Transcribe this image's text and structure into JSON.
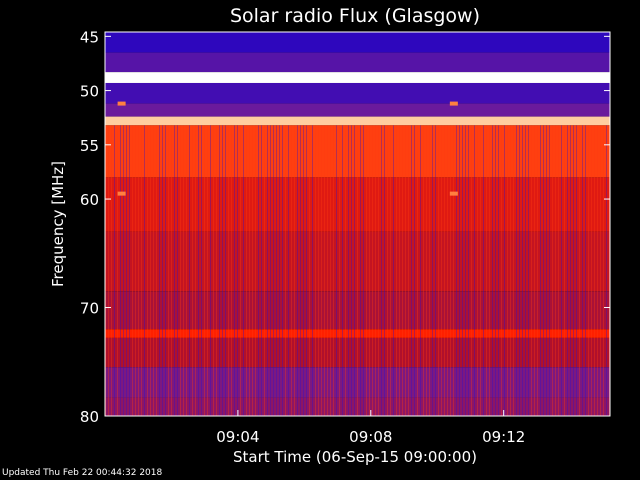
{
  "chart_data": {
    "type": "heatmap",
    "title": "Solar radio Flux (Glasgow)",
    "xlabel": "Start Time (06-Sep-15 09:00:00)",
    "ylabel_text": "Frequency ",
    "ylabel_unit": "[MHz]",
    "x_range_minutes": [
      0,
      15.2
    ],
    "x_ticks": [
      {
        "minute": 4,
        "label": "09:04"
      },
      {
        "minute": 8,
        "label": "09:08"
      },
      {
        "minute": 12,
        "label": "09:12"
      }
    ],
    "y_axis": "frequency (MHz), increasing downward",
    "y_range_mhz": [
      44.6,
      80
    ],
    "y_ticks": [
      {
        "mhz": 45,
        "label": "45"
      },
      {
        "mhz": 50,
        "label": "50"
      },
      {
        "mhz": 55,
        "label": "55"
      },
      {
        "mhz": 60,
        "label": "60"
      },
      {
        "mhz": 70,
        "label": "70"
      },
      {
        "mhz": 80,
        "label": "80"
      }
    ],
    "colormap": [
      "#1a00c8",
      "#6a1a9c",
      "#b0102c",
      "#ff2000",
      "#ff9a40",
      "#ffffff"
    ],
    "bands": [
      {
        "from_mhz": 44.6,
        "to_mhz": 46.5,
        "intensity": 0.05
      },
      {
        "from_mhz": 46.5,
        "to_mhz": 48.3,
        "intensity": 0.15
      },
      {
        "from_mhz": 48.3,
        "to_mhz": 49.3,
        "intensity": 1.0
      },
      {
        "from_mhz": 49.3,
        "to_mhz": 51.2,
        "intensity": 0.1
      },
      {
        "from_mhz": 51.2,
        "to_mhz": 52.4,
        "intensity": 0.2
      },
      {
        "from_mhz": 52.4,
        "to_mhz": 53.2,
        "intensity": 0.9
      },
      {
        "from_mhz": 53.2,
        "to_mhz": 58.0,
        "intensity": 0.65
      },
      {
        "from_mhz": 58.0,
        "to_mhz": 63.0,
        "intensity": 0.52
      },
      {
        "from_mhz": 63.0,
        "to_mhz": 68.5,
        "intensity": 0.45
      },
      {
        "from_mhz": 68.5,
        "to_mhz": 72.0,
        "intensity": 0.38
      },
      {
        "from_mhz": 72.0,
        "to_mhz": 72.8,
        "intensity": 0.6
      },
      {
        "from_mhz": 72.8,
        "to_mhz": 75.5,
        "intensity": 0.4
      },
      {
        "from_mhz": 75.5,
        "to_mhz": 78.3,
        "intensity": 0.25
      },
      {
        "from_mhz": 78.3,
        "to_mhz": 80.0,
        "intensity": 0.3
      }
    ],
    "spot_mhz": [
      {
        "mhz": 59.5,
        "minutes": [
          0.5,
          10.5
        ]
      },
      {
        "mhz": 51.2,
        "minutes": [
          0.5,
          10.5
        ]
      }
    ]
  },
  "footer": "Updated Thu Feb 22 00:44:32 2018"
}
